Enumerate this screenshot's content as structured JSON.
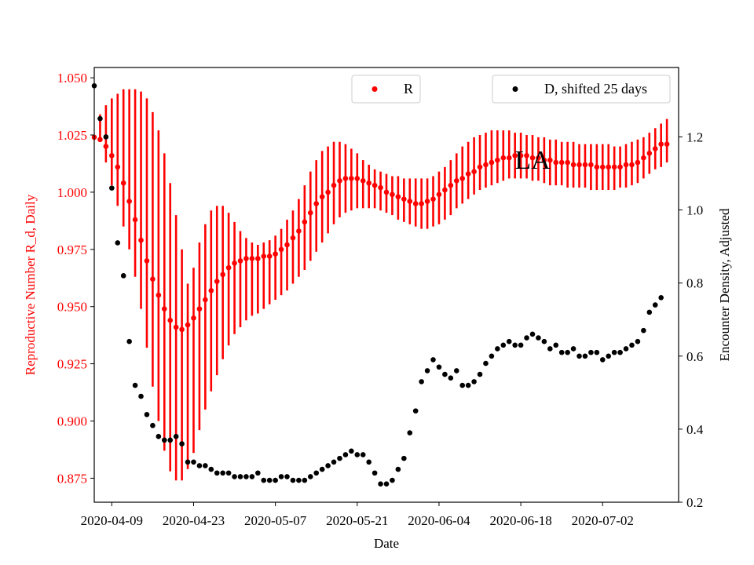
{
  "chart_data": {
    "type": "scatter",
    "title": "",
    "annotation": "LA",
    "xlabel": "Date",
    "x_ticks": [
      "2020-04-09",
      "2020-04-23",
      "2020-05-07",
      "2020-05-21",
      "2020-06-04",
      "2020-06-18",
      "2020-07-02"
    ],
    "x_range": [
      "2020-04-06",
      "2020-07-15"
    ],
    "y_left": {
      "label": "Reproductive Number R_d, Daily",
      "range": [
        0.8645,
        1.0545
      ],
      "ticks": [
        "0.875",
        "0.900",
        "0.925",
        "0.950",
        "0.975",
        "1.000",
        "1.025",
        "1.050"
      ],
      "color": "#ff0000"
    },
    "y_right": {
      "label": "Encounter Density, Adjusted",
      "range": [
        0.2,
        1.39
      ],
      "ticks": [
        "0.2",
        "0.4",
        "0.6",
        "0.8",
        "1.0",
        "1.2"
      ],
      "color": "#000000"
    },
    "grid": false,
    "legends": [
      {
        "label": "R",
        "color": "#ff0000",
        "placement": "upper-center"
      },
      {
        "label": "D, shifted 25 days",
        "color": "#000000",
        "placement": "upper-right"
      }
    ],
    "series": [
      {
        "name": "R",
        "axis": "left",
        "color": "#ff0000",
        "x_start": "2020-04-06",
        "values": [
          1.024,
          1.023,
          1.02,
          1.016,
          1.011,
          1.004,
          0.996,
          0.988,
          0.979,
          0.97,
          0.962,
          0.955,
          0.949,
          0.944,
          0.941,
          0.94,
          0.942,
          0.945,
          0.949,
          0.953,
          0.957,
          0.961,
          0.964,
          0.967,
          0.969,
          0.97,
          0.971,
          0.971,
          0.971,
          0.972,
          0.972,
          0.973,
          0.975,
          0.977,
          0.98,
          0.983,
          0.987,
          0.991,
          0.995,
          0.998,
          1.0,
          1.003,
          1.005,
          1.006,
          1.006,
          1.006,
          1.005,
          1.004,
          1.003,
          1.002,
          1.0,
          0.999,
          0.998,
          0.997,
          0.996,
          0.995,
          0.995,
          0.996,
          0.997,
          0.999,
          1.001,
          1.003,
          1.005,
          1.006,
          1.008,
          1.009,
          1.011,
          1.012,
          1.013,
          1.014,
          1.015,
          1.015,
          1.016,
          1.016,
          1.016,
          1.015,
          1.015,
          1.014,
          1.014,
          1.013,
          1.013,
          1.013,
          1.012,
          1.012,
          1.012,
          1.012,
          1.011,
          1.011,
          1.011,
          1.011,
          1.011,
          1.012,
          1.012,
          1.013,
          1.015,
          1.017,
          1.019,
          1.021,
          1.021
        ],
        "lower": [
          1.024,
          1.022,
          1.013,
          1.003,
          0.994,
          0.985,
          0.975,
          0.963,
          0.949,
          0.932,
          0.915,
          0.9,
          0.887,
          0.878,
          0.874,
          0.874,
          0.879,
          0.886,
          0.896,
          0.905,
          0.913,
          0.92,
          0.927,
          0.933,
          0.938,
          0.941,
          0.944,
          0.946,
          0.947,
          0.949,
          0.951,
          0.953,
          0.955,
          0.957,
          0.96,
          0.963,
          0.966,
          0.97,
          0.974,
          0.978,
          0.982,
          0.986,
          0.989,
          0.991,
          0.992,
          0.993,
          0.993,
          0.993,
          0.993,
          0.992,
          0.991,
          0.99,
          0.988,
          0.987,
          0.986,
          0.985,
          0.984,
          0.984,
          0.985,
          0.986,
          0.988,
          0.99,
          0.993,
          0.995,
          0.997,
          0.999,
          1.001,
          1.002,
          1.003,
          1.004,
          1.005,
          1.006,
          1.006,
          1.006,
          1.006,
          1.005,
          1.005,
          1.004,
          1.003,
          1.003,
          1.003,
          1.002,
          1.002,
          1.002,
          1.002,
          1.001,
          1.001,
          1.001,
          1.001,
          1.001,
          1.002,
          1.002,
          1.003,
          1.004,
          1.006,
          1.008,
          1.01,
          1.011,
          1.013
        ],
        "upper": [
          1.024,
          1.034,
          1.038,
          1.041,
          1.043,
          1.045,
          1.045,
          1.045,
          1.044,
          1.041,
          1.035,
          1.027,
          1.017,
          1.004,
          0.99,
          0.975,
          0.96,
          0.967,
          0.978,
          0.986,
          0.992,
          0.994,
          0.994,
          0.991,
          0.987,
          0.983,
          0.98,
          0.978,
          0.977,
          0.978,
          0.979,
          0.981,
          0.984,
          0.988,
          0.992,
          0.997,
          1.003,
          1.009,
          1.014,
          1.018,
          1.02,
          1.022,
          1.022,
          1.021,
          1.019,
          1.017,
          1.014,
          1.012,
          1.01,
          1.009,
          1.008,
          1.007,
          1.007,
          1.006,
          1.006,
          1.006,
          1.006,
          1.006,
          1.007,
          1.009,
          1.011,
          1.014,
          1.017,
          1.02,
          1.022,
          1.024,
          1.025,
          1.026,
          1.027,
          1.027,
          1.027,
          1.027,
          1.026,
          1.026,
          1.025,
          1.025,
          1.024,
          1.024,
          1.023,
          1.023,
          1.022,
          1.022,
          1.022,
          1.021,
          1.021,
          1.021,
          1.021,
          1.021,
          1.021,
          1.02,
          1.02,
          1.021,
          1.022,
          1.023,
          1.024,
          1.026,
          1.028,
          1.03,
          1.032
        ]
      },
      {
        "name": "D, shifted 25 days",
        "axis": "right",
        "color": "#000000",
        "x_start": "2020-04-06",
        "values": [
          1.34,
          1.25,
          1.2,
          1.06,
          0.91,
          0.82,
          0.64,
          0.52,
          0.49,
          0.44,
          0.41,
          0.38,
          0.37,
          0.37,
          0.38,
          0.36,
          0.31,
          0.31,
          0.3,
          0.3,
          0.29,
          0.28,
          0.28,
          0.28,
          0.27,
          0.27,
          0.27,
          0.27,
          0.28,
          0.26,
          0.26,
          0.26,
          0.27,
          0.27,
          0.26,
          0.26,
          0.26,
          0.27,
          0.28,
          0.29,
          0.3,
          0.31,
          0.32,
          0.33,
          0.34,
          0.33,
          0.33,
          0.31,
          0.28,
          0.25,
          0.25,
          0.26,
          0.29,
          0.32,
          0.39,
          0.45,
          0.53,
          0.56,
          0.59,
          0.57,
          0.55,
          0.54,
          0.56,
          0.52,
          0.52,
          0.53,
          0.55,
          0.58,
          0.6,
          0.62,
          0.63,
          0.64,
          0.63,
          0.63,
          0.65,
          0.66,
          0.65,
          0.64,
          0.62,
          0.63,
          0.61,
          0.61,
          0.62,
          0.6,
          0.6,
          0.61,
          0.61,
          0.59,
          0.6,
          0.61,
          0.61,
          0.62,
          0.63,
          0.64,
          0.67,
          0.72,
          0.74,
          0.76
        ]
      }
    ]
  }
}
